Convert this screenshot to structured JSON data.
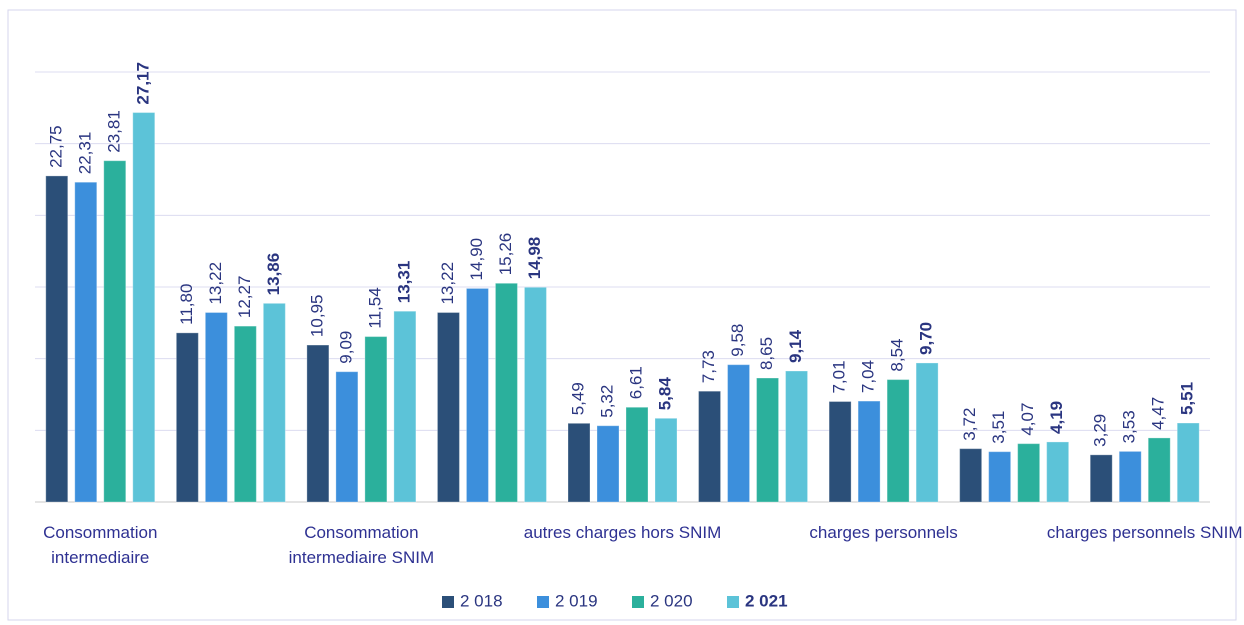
{
  "chart_data": {
    "type": "bar",
    "categories": [
      "Consommation intermediaire",
      null,
      "Consommation intermediaire  SNIM",
      null,
      "autres charges hors SNIM",
      null,
      "charges personnels",
      null,
      "charges personnels SNIM"
    ],
    "series": [
      {
        "name": "2 018",
        "color": "#2b4f78",
        "values": [
          22.75,
          11.8,
          10.95,
          13.22,
          5.49,
          7.73,
          7.01,
          3.72,
          3.29
        ],
        "value_labels": [
          "22,75",
          "11,80",
          "10,95",
          "13,22",
          "5,49",
          "7,73",
          "7,01",
          "3,72",
          "3,29"
        ]
      },
      {
        "name": "2 019",
        "color": "#3c8fdc",
        "values": [
          22.31,
          13.22,
          9.09,
          14.9,
          5.32,
          9.58,
          7.04,
          3.51,
          3.53
        ],
        "value_labels": [
          "22,31",
          "13,22",
          "9,09",
          "14,90",
          "5,32",
          "9,58",
          "7,04",
          "3,51",
          "3,53"
        ]
      },
      {
        "name": "2 020",
        "color": "#2bb09c",
        "values": [
          23.81,
          12.27,
          11.54,
          15.26,
          6.61,
          8.65,
          8.54,
          4.07,
          4.47
        ],
        "value_labels": [
          "23,81",
          "12,27",
          "11,54",
          "15,26",
          "6,61",
          "8,65",
          "8,54",
          "4,07",
          "4,47"
        ]
      },
      {
        "name": "2 021",
        "color": "#5cc3d8",
        "font_weight": "bold",
        "values": [
          27.17,
          13.86,
          13.31,
          14.98,
          5.84,
          9.14,
          9.7,
          4.19,
          5.51
        ],
        "value_labels": [
          "27,17",
          "13,86",
          "13,31",
          "14,98",
          "5,84",
          "9,14",
          "9,70",
          "4,19",
          "5,51"
        ]
      }
    ],
    "ylim": [
      0,
      30
    ],
    "yticks": [
      0,
      5,
      10,
      15,
      20,
      25,
      30
    ],
    "grid": true,
    "legend": "bottom"
  }
}
